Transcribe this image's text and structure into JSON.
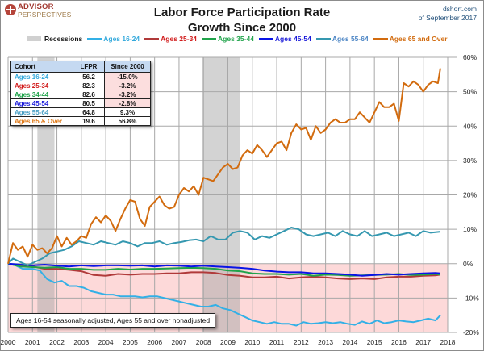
{
  "header": {
    "logo_line1": "ADVISOR",
    "logo_line2": "PERSPECTIVES",
    "source_line1": "dshort.com",
    "source_line2": "of September 2017"
  },
  "chart_data": {
    "type": "line",
    "title": "Labor Force Participation Rate",
    "subtitle": "Growth Since 2000",
    "xlabel": "",
    "ylabel": "",
    "xlim": [
      2000,
      2018
    ],
    "ylim": [
      -20,
      60
    ],
    "y_ticks": [
      60,
      50,
      40,
      30,
      20,
      10,
      0,
      -10,
      -20
    ],
    "y_tick_labels": [
      "60%",
      "50%",
      "40%",
      "30%",
      "20%",
      "10%",
      "0%",
      "-10%",
      "-20%"
    ],
    "x_ticks": [
      2000,
      2001,
      2002,
      2003,
      2004,
      2005,
      2006,
      2007,
      2008,
      2009,
      2010,
      2011,
      2012,
      2013,
      2014,
      2015,
      2016,
      2017,
      2018
    ],
    "x_tick_labels": [
      "2000",
      "2001",
      "2002",
      "2003",
      "2004",
      "2005",
      "2006",
      "2007",
      "2008",
      "2009",
      "2010",
      "2011",
      "2012",
      "2013",
      "2014",
      "2015",
      "2016",
      "2017",
      "2018"
    ],
    "grid": true,
    "legend_position": "top",
    "negative_region_color": "#fdd9d9",
    "recessions": [
      {
        "start": 2001.2,
        "end": 2001.9
      },
      {
        "start": 2007.95,
        "end": 2009.5
      }
    ],
    "legend": [
      {
        "label": "Recessions",
        "type": "band",
        "color": "#d0d0d0",
        "text_color": "#1a1a1a"
      },
      {
        "label": "Ages 16-24",
        "type": "line",
        "color": "#33b0e6",
        "text_color": "#33a9dc"
      },
      {
        "label": "Ages 25-34",
        "type": "line",
        "color": "#b03a3a",
        "text_color": "#d11a1a"
      },
      {
        "label": "Ages 35-44",
        "type": "line",
        "color": "#1fa34a",
        "text_color": "#1fa34a"
      },
      {
        "label": "Ages 45-54",
        "type": "line",
        "color": "#0a14e6",
        "text_color": "#1a1ad9"
      },
      {
        "label": "Ages 55-64",
        "type": "line",
        "color": "#3598b0",
        "text_color": "#4a84c4"
      },
      {
        "label": "Ages 65 and Over",
        "type": "line",
        "color": "#d26b0e",
        "text_color": "#d26b0e"
      }
    ],
    "series": [
      {
        "name": "Ages 16-24",
        "color": "#33b0e6",
        "x": [
          2000.0,
          2000.3,
          2000.6,
          2001.0,
          2001.3,
          2001.6,
          2001.9,
          2002.2,
          2002.5,
          2002.8,
          2003.1,
          2003.4,
          2003.7,
          2004.0,
          2004.3,
          2004.6,
          2004.9,
          2005.2,
          2005.5,
          2005.8,
          2006.1,
          2006.4,
          2006.7,
          2007.0,
          2007.3,
          2007.6,
          2007.9,
          2008.2,
          2008.5,
          2008.8,
          2009.1,
          2009.4,
          2009.7,
          2010.0,
          2010.3,
          2010.6,
          2010.9,
          2011.2,
          2011.5,
          2011.8,
          2012.1,
          2012.4,
          2012.7,
          2013.0,
          2013.3,
          2013.6,
          2013.9,
          2014.2,
          2014.5,
          2014.8,
          2015.1,
          2015.4,
          2015.7,
          2016.0,
          2016.3,
          2016.6,
          2016.9,
          2017.2,
          2017.5,
          2017.7
        ],
        "y": [
          0.0,
          -0.5,
          -1.5,
          -1.5,
          -2.0,
          -4.5,
          -5.5,
          -5.0,
          -6.5,
          -6.5,
          -7.0,
          -8.0,
          -8.5,
          -9.0,
          -9.0,
          -9.5,
          -9.5,
          -9.5,
          -9.8,
          -9.5,
          -9.5,
          -10.0,
          -10.5,
          -11.0,
          -11.5,
          -12.0,
          -12.5,
          -12.5,
          -12.0,
          -13.0,
          -13.5,
          -14.5,
          -15.5,
          -16.5,
          -17.0,
          -17.5,
          -17.0,
          -17.5,
          -17.5,
          -18.0,
          -17.0,
          -17.5,
          -17.3,
          -17.0,
          -17.3,
          -17.0,
          -17.5,
          -17.8,
          -16.8,
          -17.5,
          -16.5,
          -17.3,
          -17.0,
          -16.5,
          -16.8,
          -17.0,
          -16.5,
          -16.0,
          -16.5,
          -15.0
        ]
      },
      {
        "name": "Ages 25-34",
        "color": "#b03a3a",
        "x": [
          2000.0,
          2000.5,
          2001.0,
          2001.5,
          2002.0,
          2002.5,
          2003.0,
          2003.5,
          2004.0,
          2004.5,
          2005.0,
          2005.5,
          2006.0,
          2006.5,
          2007.0,
          2007.5,
          2008.0,
          2008.5,
          2009.0,
          2009.5,
          2010.0,
          2010.5,
          2011.0,
          2011.5,
          2012.0,
          2012.5,
          2013.0,
          2013.5,
          2014.0,
          2014.5,
          2015.0,
          2015.5,
          2016.0,
          2016.5,
          2017.0,
          2017.5,
          2017.7
        ],
        "y": [
          0.0,
          -0.5,
          -0.8,
          -1.5,
          -1.5,
          -1.8,
          -2.2,
          -3.3,
          -3.5,
          -3.0,
          -3.2,
          -3.0,
          -3.0,
          -2.8,
          -2.8,
          -2.5,
          -2.5,
          -2.7,
          -3.3,
          -3.5,
          -4.0,
          -4.0,
          -3.8,
          -4.3,
          -4.0,
          -3.8,
          -4.0,
          -4.3,
          -4.5,
          -4.3,
          -4.5,
          -4.0,
          -3.8,
          -3.8,
          -3.5,
          -3.4,
          -3.2
        ]
      },
      {
        "name": "Ages 35-44",
        "color": "#1fa34a",
        "x": [
          2000.0,
          2000.5,
          2001.0,
          2001.5,
          2002.0,
          2002.5,
          2003.0,
          2003.5,
          2004.0,
          2004.5,
          2005.0,
          2005.5,
          2006.0,
          2006.5,
          2007.0,
          2007.5,
          2008.0,
          2008.5,
          2009.0,
          2009.5,
          2010.0,
          2010.5,
          2011.0,
          2011.5,
          2012.0,
          2012.5,
          2013.0,
          2013.5,
          2014.0,
          2014.5,
          2015.0,
          2015.5,
          2016.0,
          2016.5,
          2017.0,
          2017.5,
          2017.7
        ],
        "y": [
          0.0,
          -0.8,
          -1.0,
          -1.2,
          -1.0,
          -1.5,
          -1.5,
          -1.8,
          -1.8,
          -1.5,
          -1.7,
          -1.5,
          -1.5,
          -1.4,
          -1.3,
          -1.2,
          -1.3,
          -1.5,
          -2.0,
          -2.2,
          -2.8,
          -3.0,
          -3.0,
          -3.2,
          -3.0,
          -3.5,
          -3.2,
          -3.3,
          -3.5,
          -3.4,
          -3.3,
          -3.2,
          -3.0,
          -3.3,
          -3.2,
          -3.0,
          -3.2
        ]
      },
      {
        "name": "Ages 45-54",
        "color": "#0a14e6",
        "x": [
          2000.0,
          2000.5,
          2001.0,
          2001.5,
          2002.0,
          2002.5,
          2003.0,
          2003.5,
          2004.0,
          2004.5,
          2005.0,
          2005.5,
          2006.0,
          2006.5,
          2007.0,
          2007.5,
          2008.0,
          2008.5,
          2009.0,
          2009.5,
          2010.0,
          2010.5,
          2011.0,
          2011.5,
          2012.0,
          2012.5,
          2013.0,
          2013.5,
          2014.0,
          2014.5,
          2015.0,
          2015.5,
          2016.0,
          2016.5,
          2017.0,
          2017.5,
          2017.7
        ],
        "y": [
          0.0,
          -0.3,
          -0.5,
          -0.3,
          -0.6,
          -0.8,
          -0.5,
          -0.7,
          -0.5,
          -0.5,
          -0.6,
          -0.5,
          -0.8,
          -0.5,
          -0.6,
          -0.8,
          -0.6,
          -0.8,
          -1.0,
          -1.2,
          -1.5,
          -2.0,
          -2.3,
          -2.5,
          -2.5,
          -2.8,
          -2.8,
          -3.0,
          -3.2,
          -3.5,
          -3.3,
          -3.0,
          -3.2,
          -3.0,
          -2.8,
          -2.7,
          -2.8
        ]
      },
      {
        "name": "Ages 55-64",
        "color": "#3598b0",
        "x": [
          2000.0,
          2000.2,
          2000.5,
          2000.8,
          2001.1,
          2001.4,
          2001.7,
          2002.0,
          2002.3,
          2002.6,
          2002.9,
          2003.2,
          2003.5,
          2003.8,
          2004.1,
          2004.4,
          2004.7,
          2005.0,
          2005.3,
          2005.6,
          2005.9,
          2006.2,
          2006.5,
          2006.8,
          2007.1,
          2007.4,
          2007.7,
          2008.0,
          2008.3,
          2008.6,
          2008.9,
          2009.2,
          2009.5,
          2009.8,
          2010.1,
          2010.4,
          2010.7,
          2011.0,
          2011.3,
          2011.6,
          2011.9,
          2012.2,
          2012.5,
          2012.8,
          2013.1,
          2013.4,
          2013.7,
          2014.0,
          2014.3,
          2014.6,
          2014.9,
          2015.2,
          2015.5,
          2015.8,
          2016.1,
          2016.4,
          2016.7,
          2017.0,
          2017.3,
          2017.7
        ],
        "y": [
          0.0,
          1.5,
          0.5,
          -0.5,
          0.5,
          1.5,
          3.0,
          3.5,
          4.0,
          5.0,
          6.5,
          6.0,
          5.5,
          6.5,
          6.0,
          5.5,
          6.5,
          6.0,
          5.0,
          6.0,
          6.0,
          6.5,
          5.5,
          6.0,
          6.3,
          6.8,
          7.0,
          6.5,
          8.0,
          7.0,
          7.0,
          9.0,
          9.5,
          9.0,
          7.0,
          8.0,
          7.5,
          8.5,
          9.5,
          10.5,
          10.0,
          8.5,
          8.0,
          8.5,
          9.0,
          8.0,
          9.5,
          8.5,
          8.0,
          9.5,
          8.0,
          8.5,
          9.0,
          8.0,
          8.5,
          9.0,
          8.0,
          9.5,
          9.0,
          9.3
        ]
      },
      {
        "name": "Ages 65 and Over",
        "color": "#d26b0e",
        "x": [
          2000.0,
          2000.2,
          2000.4,
          2000.6,
          2000.8,
          2001.0,
          2001.2,
          2001.4,
          2001.6,
          2001.8,
          2002.0,
          2002.2,
          2002.4,
          2002.6,
          2002.8,
          2003.0,
          2003.2,
          2003.4,
          2003.6,
          2003.8,
          2004.0,
          2004.2,
          2004.4,
          2004.6,
          2004.8,
          2005.0,
          2005.2,
          2005.4,
          2005.6,
          2005.8,
          2006.0,
          2006.2,
          2006.4,
          2006.6,
          2006.8,
          2007.0,
          2007.2,
          2007.4,
          2007.6,
          2007.8,
          2008.0,
          2008.2,
          2008.4,
          2008.6,
          2008.8,
          2009.0,
          2009.2,
          2009.4,
          2009.6,
          2009.8,
          2010.0,
          2010.2,
          2010.4,
          2010.6,
          2010.8,
          2011.0,
          2011.2,
          2011.4,
          2011.6,
          2011.8,
          2012.0,
          2012.2,
          2012.4,
          2012.6,
          2012.8,
          2013.0,
          2013.2,
          2013.4,
          2013.6,
          2013.8,
          2014.0,
          2014.2,
          2014.4,
          2014.6,
          2014.8,
          2015.0,
          2015.2,
          2015.4,
          2015.6,
          2015.8,
          2016.0,
          2016.2,
          2016.4,
          2016.6,
          2016.8,
          2017.0,
          2017.2,
          2017.4,
          2017.6,
          2017.7
        ],
        "y": [
          0.0,
          6.0,
          4.0,
          5.0,
          2.0,
          5.5,
          4.0,
          4.5,
          3.0,
          4.5,
          8.0,
          5.0,
          7.5,
          5.5,
          6.5,
          8.0,
          7.5,
          11.5,
          13.5,
          12.0,
          14.0,
          12.5,
          9.5,
          13.0,
          16.0,
          18.5,
          18.0,
          13.0,
          11.0,
          16.5,
          18.0,
          19.5,
          17.0,
          16.0,
          16.5,
          20.0,
          22.0,
          21.0,
          22.5,
          20.0,
          25.0,
          24.5,
          24.0,
          26.0,
          28.0,
          29.0,
          27.5,
          28.0,
          31.5,
          33.0,
          32.0,
          34.5,
          33.0,
          31.0,
          33.0,
          35.0,
          35.5,
          33.0,
          38.0,
          40.5,
          39.0,
          39.5,
          36.0,
          40.0,
          38.0,
          39.0,
          41.0,
          42.0,
          41.0,
          41.0,
          42.0,
          42.0,
          44.0,
          42.5,
          41.0,
          44.0,
          47.0,
          45.5,
          45.5,
          46.5,
          41.5,
          52.5,
          51.5,
          53.0,
          52.0,
          50.0,
          52.0,
          53.0,
          52.5,
          56.8
        ]
      }
    ]
  },
  "table": {
    "headers": [
      "Cohort",
      "LFPR",
      "Since 2000"
    ],
    "rows": [
      {
        "cohort": "Ages 16-24",
        "lfpr": "56.2",
        "since": "-15.0%",
        "color": "#33a9dc",
        "negative": true
      },
      {
        "cohort": "Ages 25-34",
        "lfpr": "82.3",
        "since": "-3.2%",
        "color": "#d11a1a",
        "negative": true
      },
      {
        "cohort": "Ages 34-44",
        "lfpr": "82.6",
        "since": "-3.2%",
        "color": "#1fa34a",
        "negative": true
      },
      {
        "cohort": "Ages 45-54",
        "lfpr": "80.5",
        "since": "-2.8%",
        "color": "#1a1ad9",
        "negative": true
      },
      {
        "cohort": "Ages 55-64",
        "lfpr": "64.8",
        "since": "9.3%",
        "color": "#4a9fc4",
        "negative": false
      },
      {
        "cohort": "Ages 65  & Over",
        "lfpr": "19.6",
        "since": "56.8%",
        "color": "#e07b1a",
        "negative": false
      }
    ]
  },
  "note": "Ages 16-54 seasonally adjusted, Ages 55 and over nonadjusted"
}
